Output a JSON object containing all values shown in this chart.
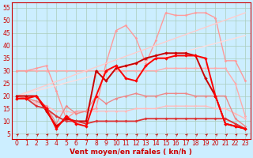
{
  "title": "",
  "xlabel": "Vent moyen/en rafales ( kn/h )",
  "ylabel": "",
  "bg_color": "#cceeff",
  "grid_color": "#aaccbb",
  "x_ticks": [
    0,
    1,
    2,
    3,
    4,
    5,
    6,
    7,
    8,
    9,
    10,
    11,
    12,
    13,
    14,
    15,
    16,
    17,
    18,
    19,
    20,
    21,
    22,
    23
  ],
  "y_ticks": [
    5,
    10,
    15,
    20,
    25,
    30,
    35,
    40,
    45,
    50,
    55
  ],
  "ylim": [
    3,
    57
  ],
  "xlim": [
    -0.5,
    23.5
  ],
  "lines": [
    {
      "x": [
        0,
        1,
        2,
        3,
        4,
        5,
        6,
        7,
        8,
        9,
        10,
        11,
        12,
        13,
        14,
        15,
        16,
        17,
        18,
        19,
        20,
        21,
        22,
        23
      ],
      "y": [
        30,
        30,
        30,
        30,
        30,
        30,
        30,
        30,
        30,
        30,
        30,
        30,
        30,
        30,
        30,
        31,
        31,
        31,
        31,
        31,
        31,
        31,
        25,
        12
      ],
      "color": "#ffaaaa",
      "marker": "D",
      "ms": 1.8,
      "lw": 1.0
    },
    {
      "x": [
        0,
        1,
        2,
        3,
        4,
        5,
        6,
        7,
        8,
        9,
        10,
        11,
        12,
        13,
        14,
        15,
        16,
        17,
        18,
        19,
        20,
        21,
        22,
        23
      ],
      "y": [
        30,
        30,
        31,
        32,
        22,
        11,
        14,
        14,
        15,
        33,
        46,
        48,
        43,
        33,
        42,
        53,
        52,
        52,
        53,
        53,
        51,
        34,
        34,
        26
      ],
      "color": "#ff9999",
      "marker": "D",
      "ms": 1.8,
      "lw": 1.0
    },
    {
      "x": [
        0,
        23
      ],
      "y": [
        20,
        53
      ],
      "color": "#ffcccc",
      "marker": null,
      "ms": 0,
      "lw": 1.0
    },
    {
      "x": [
        0,
        23
      ],
      "y": [
        20,
        44
      ],
      "color": "#ffdddd",
      "marker": null,
      "ms": 0,
      "lw": 1.0
    },
    {
      "x": [
        0,
        1,
        2,
        3,
        4,
        5,
        6,
        7,
        8,
        9,
        10,
        11,
        12,
        13,
        14,
        15,
        16,
        17,
        18,
        19,
        20,
        21,
        22,
        23
      ],
      "y": [
        20,
        20,
        17,
        16,
        14,
        14,
        13,
        14,
        14,
        14,
        14,
        14,
        15,
        15,
        15,
        16,
        16,
        16,
        16,
        16,
        15,
        15,
        13,
        11
      ],
      "color": "#ffbbbb",
      "marker": "D",
      "ms": 1.8,
      "lw": 1.0
    },
    {
      "x": [
        0,
        1,
        2,
        3,
        4,
        5,
        6,
        7,
        8,
        9,
        10,
        11,
        12,
        13,
        14,
        15,
        16,
        17,
        18,
        19,
        20,
        21,
        22,
        23
      ],
      "y": [
        20,
        19,
        18,
        16,
        9,
        16,
        13,
        14,
        20,
        17,
        19,
        20,
        21,
        20,
        20,
        21,
        21,
        21,
        20,
        20,
        20,
        20,
        11,
        8
      ],
      "color": "#ee8888",
      "marker": "D",
      "ms": 1.8,
      "lw": 1.0
    },
    {
      "x": [
        0,
        1,
        2,
        3,
        4,
        5,
        6,
        7,
        8,
        9,
        10,
        11,
        12,
        13,
        14,
        15,
        16,
        17,
        18,
        19,
        20,
        21,
        22,
        23
      ],
      "y": [
        20,
        20,
        20,
        14,
        8,
        11,
        10,
        10,
        30,
        26,
        31,
        32,
        33,
        35,
        36,
        37,
        37,
        37,
        36,
        27,
        20,
        9,
        8,
        7
      ],
      "color": "#cc0000",
      "marker": "D",
      "ms": 2.2,
      "lw": 1.4
    },
    {
      "x": [
        0,
        1,
        2,
        3,
        4,
        5,
        6,
        7,
        8,
        9,
        10,
        11,
        12,
        13,
        14,
        15,
        16,
        17,
        18,
        19,
        20,
        21,
        22,
        23
      ],
      "y": [
        19,
        19,
        16,
        15,
        12,
        10,
        10,
        9,
        10,
        10,
        10,
        10,
        10,
        11,
        11,
        11,
        11,
        11,
        11,
        11,
        11,
        11,
        9,
        7
      ],
      "color": "#dd3333",
      "marker": "D",
      "ms": 2.0,
      "lw": 1.3
    },
    {
      "x": [
        0,
        1,
        2,
        3,
        4,
        5,
        6,
        7,
        8,
        9,
        10,
        11,
        12,
        13,
        14,
        15,
        16,
        17,
        18,
        19,
        20,
        21,
        22,
        23
      ],
      "y": [
        19,
        19,
        20,
        15,
        7,
        12,
        9,
        8,
        20,
        30,
        32,
        27,
        26,
        32,
        35,
        35,
        36,
        36,
        36,
        35,
        20,
        9,
        8,
        7
      ],
      "color": "#ff0000",
      "marker": "D",
      "ms": 2.2,
      "lw": 1.4
    }
  ],
  "arrow_color": "#cc0000",
  "xlabel_color": "#cc0000",
  "xlabel_fontsize": 6.5,
  "tick_fontsize": 5.5,
  "tick_color": "#cc0000"
}
